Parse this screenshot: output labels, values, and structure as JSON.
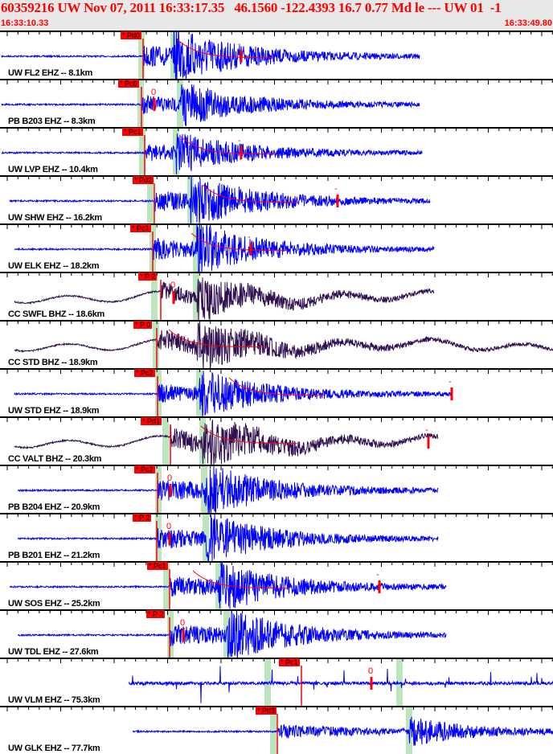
{
  "header": {
    "title": "60359216 UW Nov 07, 2011 16:33:17.35   46.1560 -122.4393 16.7 0.77 Md le --- UW 01  -1",
    "start_time": "16:33:10.33",
    "end_time": "16:33:49.80"
  },
  "colors": {
    "header_text": "#ff0000",
    "trace_ehz": "#0000ff",
    "trace_bhz": "#301050",
    "pick": "#ff0000",
    "window": "#bde5bd"
  },
  "traces": [
    {
      "label": "UW FL2 EHZ -- 8.1km",
      "pick": "* Pd0",
      "marker": "-",
      "channel": "EHZ"
    },
    {
      "label": "PB B203 EHZ -- 8.3km",
      "pick": "* Pc0",
      "marker": "0",
      "channel": "EHZ"
    },
    {
      "label": "UW LVP EHZ -- 10.4km",
      "pick": "* Pc1",
      "marker": "-",
      "channel": "EHZ"
    },
    {
      "label": "UW SHW EHZ -- 16.2km",
      "pick": "* Pd2",
      "marker": "-",
      "channel": "EHZ"
    },
    {
      "label": "UW ELK EHZ -- 18.2km",
      "pick": "* Pc1",
      "marker": "-",
      "channel": "EHZ"
    },
    {
      "label": "CC SWFL BHZ -- 18.6km",
      "pick": "* P 2",
      "marker": "0",
      "channel": "BHZ"
    },
    {
      "label": "CC STD BHZ -- 18.9km",
      "pick": "* P 0",
      "marker": "",
      "channel": "BHZ"
    },
    {
      "label": "UW STD EHZ -- 18.9km",
      "pick": "* Pc2",
      "marker": "-",
      "channel": "EHZ"
    },
    {
      "label": "CC VALT BHZ -- 20.3km",
      "pick": "* Pd1",
      "marker": "-",
      "channel": "BHZ"
    },
    {
      "label": "PB B204 EHZ -- 20.9km",
      "pick": "* Pc2",
      "marker": "0",
      "channel": "EHZ"
    },
    {
      "label": "PB B201 EHZ -- 21.2km",
      "pick": "* P 2",
      "marker": "0",
      "channel": "EHZ"
    },
    {
      "label": "UW SOS EHZ -- 25.2km",
      "pick": "* Pc1",
      "marker": "-",
      "channel": "EHZ"
    },
    {
      "label": "UW TDL EHZ -- 27.6km",
      "pick": "* P 2",
      "marker": "0",
      "channel": "EHZ"
    },
    {
      "label": "UW VLM EHZ -- 75.3km",
      "pick": "* Pc1",
      "marker": "0",
      "channel": "EHZ"
    },
    {
      "label": "UW GLK EHZ -- 77.7km",
      "pick": "* Pd3",
      "marker": "",
      "channel": "EHZ"
    }
  ]
}
